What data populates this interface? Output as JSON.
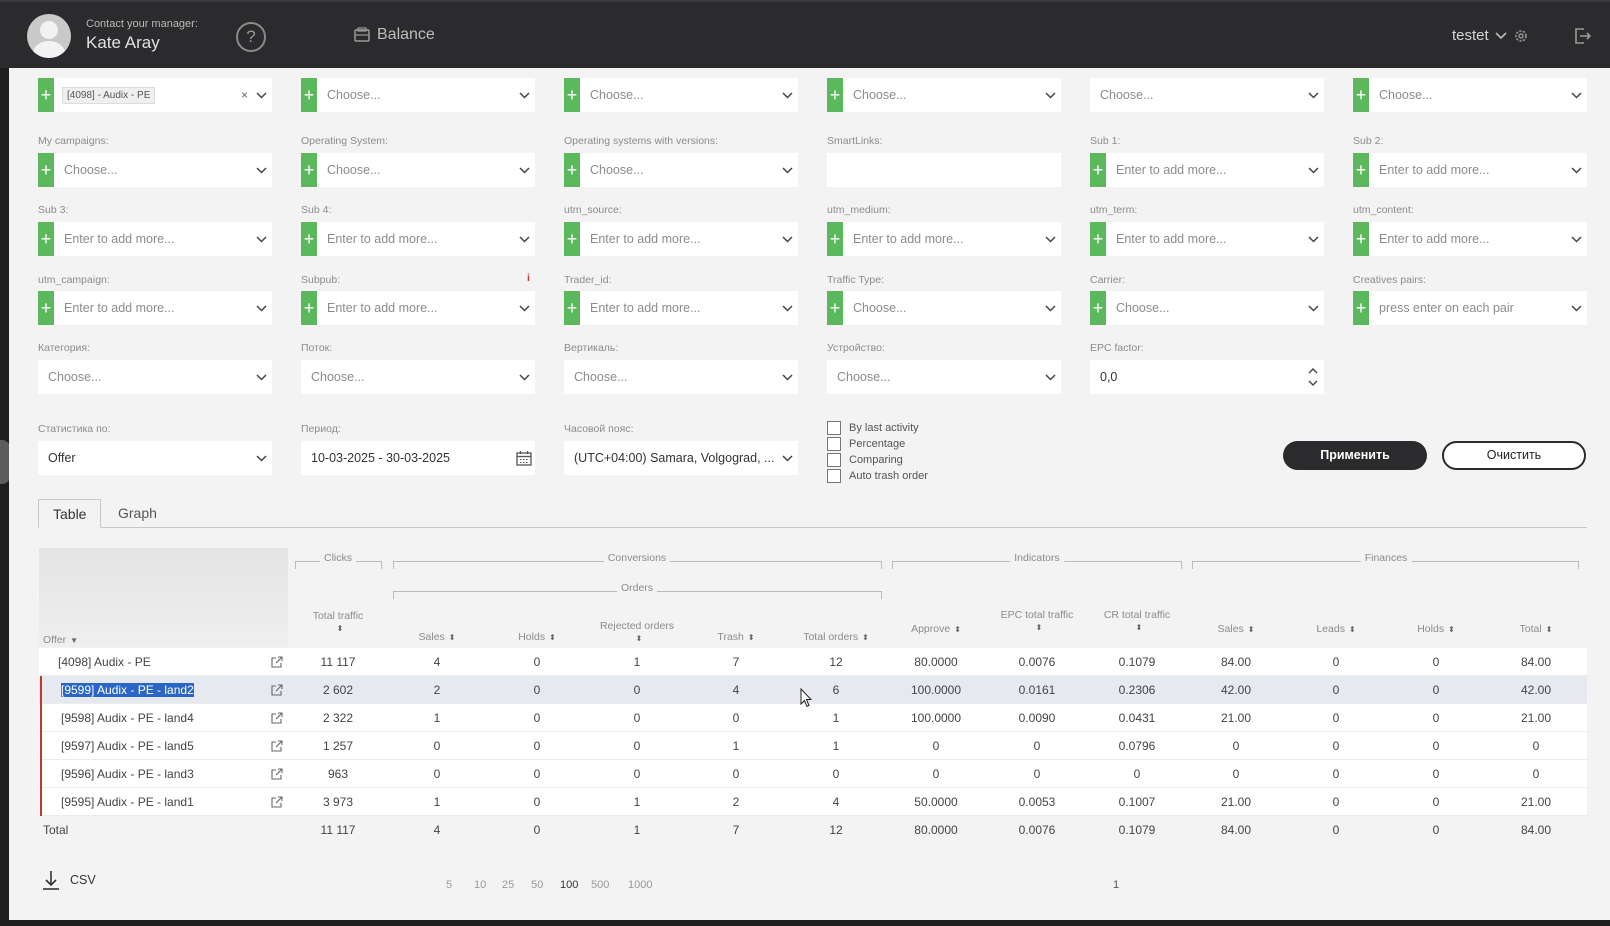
{
  "header": {
    "manager_label": "Contact your manager:",
    "manager_name": "Kate Aray",
    "help": "?",
    "balance_label": "Balance",
    "username": "testet"
  },
  "filters": {
    "row0": [
      {
        "placeholder": "Choose...",
        "plus": true
      },
      {
        "placeholder": "Choose...",
        "plus": true
      },
      {
        "placeholder": "Choose...",
        "plus": true
      },
      {
        "placeholder": "Choose...",
        "plus": false
      },
      {
        "placeholder": "Choose...",
        "plus": true
      }
    ],
    "offer_chip": "[4098] - Audix - PE",
    "chip_remove": "×",
    "row1": [
      {
        "label": "My campaigns:",
        "placeholder": "Choose..."
      },
      {
        "label": "Operating System:",
        "placeholder": "Choose..."
      },
      {
        "label": "Operating systems with versions:",
        "placeholder": "Choose..."
      },
      {
        "label": "SmartLinks:",
        "placeholder": ""
      },
      {
        "label": "Sub 1:",
        "placeholder": "Enter to add more..."
      },
      {
        "label": "Sub 2:",
        "placeholder": "Enter to add more..."
      }
    ],
    "row2": [
      {
        "label": "Sub 3:",
        "placeholder": "Enter to add more..."
      },
      {
        "label": "Sub 4:",
        "placeholder": "Enter to add more..."
      },
      {
        "label": "utm_source:",
        "placeholder": "Enter to add more..."
      },
      {
        "label": "utm_medium:",
        "placeholder": "Enter to add more..."
      },
      {
        "label": "utm_term:",
        "placeholder": "Enter to add more..."
      },
      {
        "label": "utm_content:",
        "placeholder": "Enter to add more..."
      }
    ],
    "row3": [
      {
        "label": "utm_campaign:",
        "placeholder": "Enter to add more..."
      },
      {
        "label": "Subpub:",
        "placeholder": "Enter to add more..."
      },
      {
        "label": "Trader_id:",
        "placeholder": "Enter to add more..."
      },
      {
        "label": "Traffic Type:",
        "placeholder": "Choose..."
      },
      {
        "label": "Carrier:",
        "placeholder": "Choose..."
      },
      {
        "label": "Creatives pairs:",
        "placeholder": "press enter on each pair"
      }
    ],
    "subpub_info": "i",
    "row4": [
      {
        "label": "Категория:",
        "placeholder": "Choose..."
      },
      {
        "label": "Поток:",
        "placeholder": "Choose..."
      },
      {
        "label": "Вертикаль:",
        "placeholder": "Choose..."
      },
      {
        "label": "Устройство:",
        "placeholder": "Choose..."
      }
    ],
    "epc_label": "EPC factor:",
    "epc_value": "0,0",
    "stats_label": "Статистика по:",
    "stats_value": "Offer",
    "period_label": "Период:",
    "period_value": "10-03-2025 - 30-03-2025",
    "tz_label": "Часовой пояс:",
    "tz_value": "(UTC+04:00) Samara, Volgograd, ...",
    "checkboxes": [
      "By last activity",
      "Percentage",
      "Comparing",
      "Auto trash order"
    ],
    "apply": "Применить",
    "clear": "Очистить"
  },
  "tabs": [
    "Table",
    "Graph"
  ],
  "table": {
    "groups": {
      "clicks": "Clicks",
      "conversions": "Conversions",
      "orders": "Orders",
      "indicators": "Indicators",
      "finances": "Finances"
    },
    "columns": {
      "offer": "Offer",
      "total_traffic": "Total traffic",
      "sales": "Sales",
      "holds": "Holds",
      "rejected": "Rejected orders",
      "trash": "Trash",
      "total_orders": "Total orders",
      "approve": "Approve",
      "epc": "EPC total traffic",
      "cr": "CR total traffic",
      "fin_sales": "Sales",
      "leads": "Leads",
      "fin_holds": "Holds",
      "total": "Total"
    },
    "rows": [
      [
        "[4098] Audix - PE",
        "11 117",
        "4",
        "0",
        "1",
        "7",
        "12",
        "80.0000",
        "0.0076",
        "0.1079",
        "84.00",
        "0",
        "0",
        "84.00"
      ],
      [
        "[9599] Audix - PE - land2",
        "2 602",
        "2",
        "0",
        "0",
        "4",
        "6",
        "100.0000",
        "0.0161",
        "0.2306",
        "42.00",
        "0",
        "0",
        "42.00"
      ],
      [
        "[9598] Audix - PE - land4",
        "2 322",
        "1",
        "0",
        "0",
        "0",
        "1",
        "100.0000",
        "0.0090",
        "0.0431",
        "21.00",
        "0",
        "0",
        "21.00"
      ],
      [
        "[9597] Audix - PE - land5",
        "1 257",
        "0",
        "0",
        "0",
        "1",
        "1",
        "0",
        "0",
        "0.0796",
        "0",
        "0",
        "0",
        "0"
      ],
      [
        "[9596] Audix - PE - land3",
        "963",
        "0",
        "0",
        "0",
        "0",
        "0",
        "0",
        "0",
        "0",
        "0",
        "0",
        "0",
        "0"
      ],
      [
        "[9595] Audix - PE - land1",
        "3 973",
        "1",
        "0",
        "1",
        "2",
        "4",
        "50.0000",
        "0.0053",
        "0.1007",
        "21.00",
        "0",
        "0",
        "21.00"
      ]
    ],
    "total": [
      "Total",
      "11 117",
      "4",
      "0",
      "1",
      "7",
      "12",
      "80.0000",
      "0.0076",
      "0.1079",
      "84.00",
      "0",
      "0",
      "84.00"
    ]
  },
  "footer": {
    "csv": "CSV",
    "page_sizes": [
      "5",
      "10",
      "25",
      "50",
      "100",
      "500",
      "1000"
    ],
    "page_size_selected": "100",
    "page": "1"
  },
  "colors": {
    "accent": "#5cb85c",
    "dark": "#2b2b2d",
    "selection": "#2966c5"
  }
}
